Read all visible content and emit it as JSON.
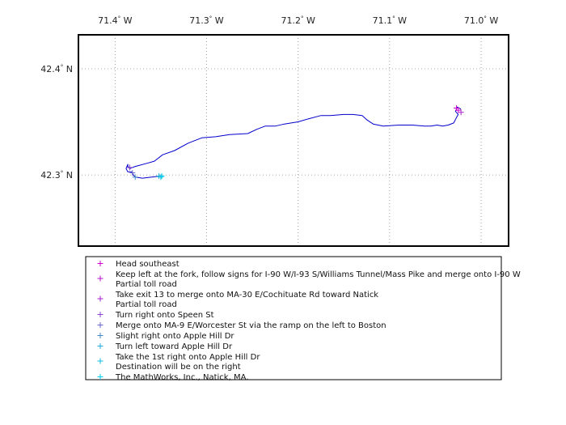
{
  "map": {
    "longitude_labels": [
      {
        "lon": -71.4,
        "deg": "71.4",
        "sup": "°",
        "hemi": " W"
      },
      {
        "lon": -71.3,
        "deg": "71.3",
        "sup": "°",
        "hemi": " W"
      },
      {
        "lon": -71.2,
        "deg": "71.2",
        "sup": "°",
        "hemi": " W"
      },
      {
        "lon": -71.1,
        "deg": "71.1",
        "sup": "°",
        "hemi": " W"
      },
      {
        "lon": -71.0,
        "deg": "71.0",
        "sup": "°",
        "hemi": " W"
      }
    ],
    "latitude_labels": [
      {
        "lat": 42.4,
        "deg": "42.4",
        "sup": "°",
        "hemi": " N"
      },
      {
        "lat": 42.3,
        "deg": "42.3",
        "sup": "°",
        "hemi": " N"
      }
    ],
    "extent": {
      "lon_min": -71.44,
      "lon_max": -70.97,
      "lat_min": 42.233,
      "lat_max": 42.432
    },
    "grid": "dotted",
    "route_color": "#0000cc",
    "route": [
      [
        -71.022,
        42.362
      ],
      [
        -71.026,
        42.364
      ],
      [
        -71.028,
        42.36
      ],
      [
        -71.025,
        42.357
      ],
      [
        -71.027,
        42.354
      ],
      [
        -71.03,
        42.349
      ],
      [
        -71.036,
        42.347
      ],
      [
        -71.042,
        42.346
      ],
      [
        -71.048,
        42.347
      ],
      [
        -71.055,
        42.346
      ],
      [
        -71.062,
        42.346
      ],
      [
        -71.075,
        42.347
      ],
      [
        -71.09,
        42.347
      ],
      [
        -71.107,
        42.346
      ],
      [
        -71.118,
        42.348
      ],
      [
        -71.125,
        42.352
      ],
      [
        -71.13,
        42.356
      ],
      [
        -71.14,
        42.357
      ],
      [
        -71.15,
        42.357
      ],
      [
        -71.165,
        42.356
      ],
      [
        -71.175,
        42.356
      ],
      [
        -71.188,
        42.353
      ],
      [
        -71.2,
        42.35
      ],
      [
        -71.215,
        42.348
      ],
      [
        -71.225,
        42.346
      ],
      [
        -71.236,
        42.346
      ],
      [
        -71.245,
        42.343
      ],
      [
        -71.255,
        42.339
      ],
      [
        -71.275,
        42.338
      ],
      [
        -71.29,
        42.336
      ],
      [
        -71.305,
        42.335
      ],
      [
        -71.32,
        42.33
      ],
      [
        -71.335,
        42.323
      ],
      [
        -71.348,
        42.319
      ],
      [
        -71.357,
        42.313
      ],
      [
        -71.365,
        42.311
      ],
      [
        -71.378,
        42.308
      ],
      [
        -71.384,
        42.306
      ],
      [
        -71.386,
        42.308
      ],
      [
        -71.386,
        42.31
      ],
      [
        -71.388,
        42.306
      ],
      [
        -71.386,
        42.303
      ],
      [
        -71.382,
        42.303
      ],
      [
        -71.38,
        42.3
      ],
      [
        -71.378,
        42.298
      ],
      [
        -71.37,
        42.297
      ],
      [
        -71.36,
        42.298
      ],
      [
        -71.35,
        42.299
      ]
    ],
    "waypoints": [
      {
        "lon": -71.025,
        "lat": 42.361,
        "color": "#cc00cc"
      },
      {
        "lon": -71.027,
        "lat": 42.363,
        "color": "#cc00cc"
      },
      {
        "lon": -71.022,
        "lat": 42.359,
        "color": "#aa22cc"
      },
      {
        "lon": -71.384,
        "lat": 42.307,
        "color": "#8844cc"
      },
      {
        "lon": -71.381,
        "lat": 42.302,
        "color": "#6666cc"
      },
      {
        "lon": -71.378,
        "lat": 42.298,
        "color": "#4488cc"
      },
      {
        "lon": -71.352,
        "lat": 42.299,
        "color": "#22aadd"
      },
      {
        "lon": -71.35,
        "lat": 42.298,
        "color": "#11bbdd"
      },
      {
        "lon": -71.349,
        "lat": 42.299,
        "color": "#00ccee"
      }
    ]
  },
  "legend": {
    "entries": [
      {
        "lines": [
          "Head southeast"
        ],
        "color": "#cc00cc"
      },
      {
        "lines": [
          "Keep left at the fork, follow signs for I-90 W/I-93 S/Williams Tunnel/Mass Pike and merge onto I-90 W",
          "Partial toll road"
        ],
        "color": "#bb11cc"
      },
      {
        "lines": [
          "Take exit 13 to merge onto MA-30 E/Cochituate Rd toward Natick",
          "Partial toll road"
        ],
        "color": "#aa22cc"
      },
      {
        "lines": [
          "Turn right onto Speen St"
        ],
        "color": "#8844cc"
      },
      {
        "lines": [
          "Merge onto MA-9 E/Worcester St via the ramp on the left to Boston"
        ],
        "color": "#6666cc"
      },
      {
        "lines": [
          "Slight right onto Apple Hill Dr"
        ],
        "color": "#4488cc"
      },
      {
        "lines": [
          "Turn left toward Apple Hill Dr"
        ],
        "color": "#22aadd"
      },
      {
        "lines": [
          "Take the 1st right onto Apple Hill Dr",
          "Destination will be on the right"
        ],
        "color": "#11bbdd"
      },
      {
        "lines": [
          "The MathWorks, Inc., Natick, MA."
        ],
        "color": "#00ccee"
      }
    ]
  }
}
